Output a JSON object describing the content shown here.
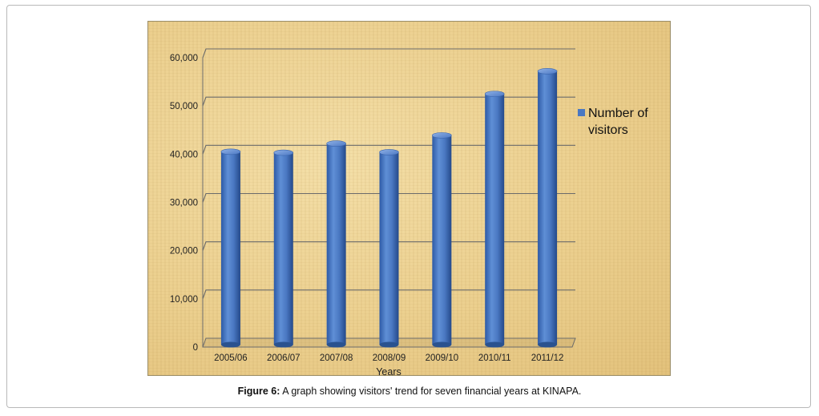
{
  "chart_data": {
    "type": "bar",
    "title": "",
    "xlabel": "Years",
    "ylabel": "",
    "categories": [
      "2005/06",
      "2006/07",
      "2007/08",
      "2008/09",
      "2009/10",
      "2010/11",
      "2011/12"
    ],
    "series": [
      {
        "name": "Number of visitors",
        "values": [
          40500,
          40300,
          42200,
          40400,
          43900,
          52500,
          57200
        ]
      }
    ],
    "ylim": [
      0,
      60000
    ],
    "yticks": [
      "0",
      "10,000",
      "20,000",
      "30,000",
      "40,000",
      "50,000",
      "60,000"
    ],
    "grid": true,
    "legend_position": "right",
    "bar_color": "#4a78c2",
    "background": "parchment"
  },
  "caption": {
    "label": "Figure 6:",
    "text": " A graph showing visitors' trend for seven financial years at KINAPA."
  }
}
